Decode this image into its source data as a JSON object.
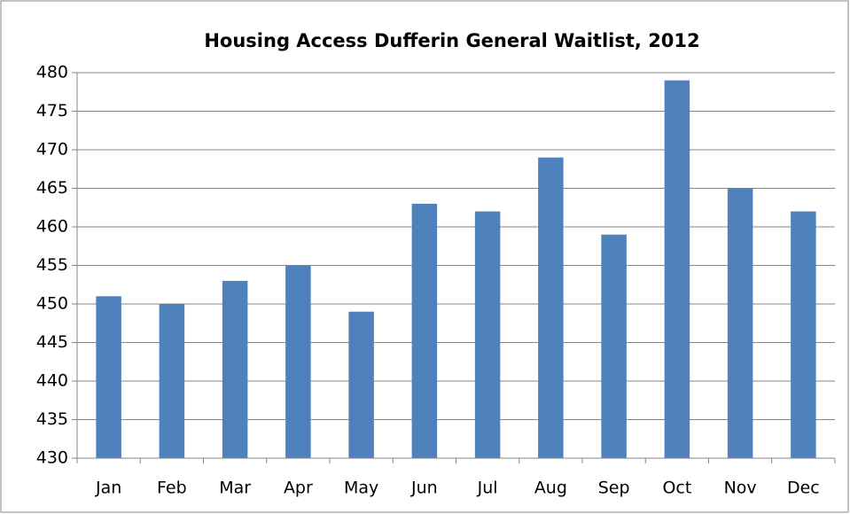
{
  "chart_data": {
    "type": "bar",
    "title": "Housing Access Dufferin General Waitlist, 2012",
    "categories": [
      "Jan",
      "Feb",
      "Mar",
      "Apr",
      "May",
      "Jun",
      "Jul",
      "Aug",
      "Sep",
      "Oct",
      "Nov",
      "Dec"
    ],
    "values": [
      451,
      450,
      453,
      455,
      449,
      463,
      462,
      469,
      459,
      479,
      465,
      462
    ],
    "color": "#4f81bd",
    "ylim": [
      430,
      480
    ],
    "yticks": [
      430,
      435,
      440,
      445,
      450,
      455,
      460,
      465,
      470,
      475,
      480
    ],
    "grid": true
  }
}
